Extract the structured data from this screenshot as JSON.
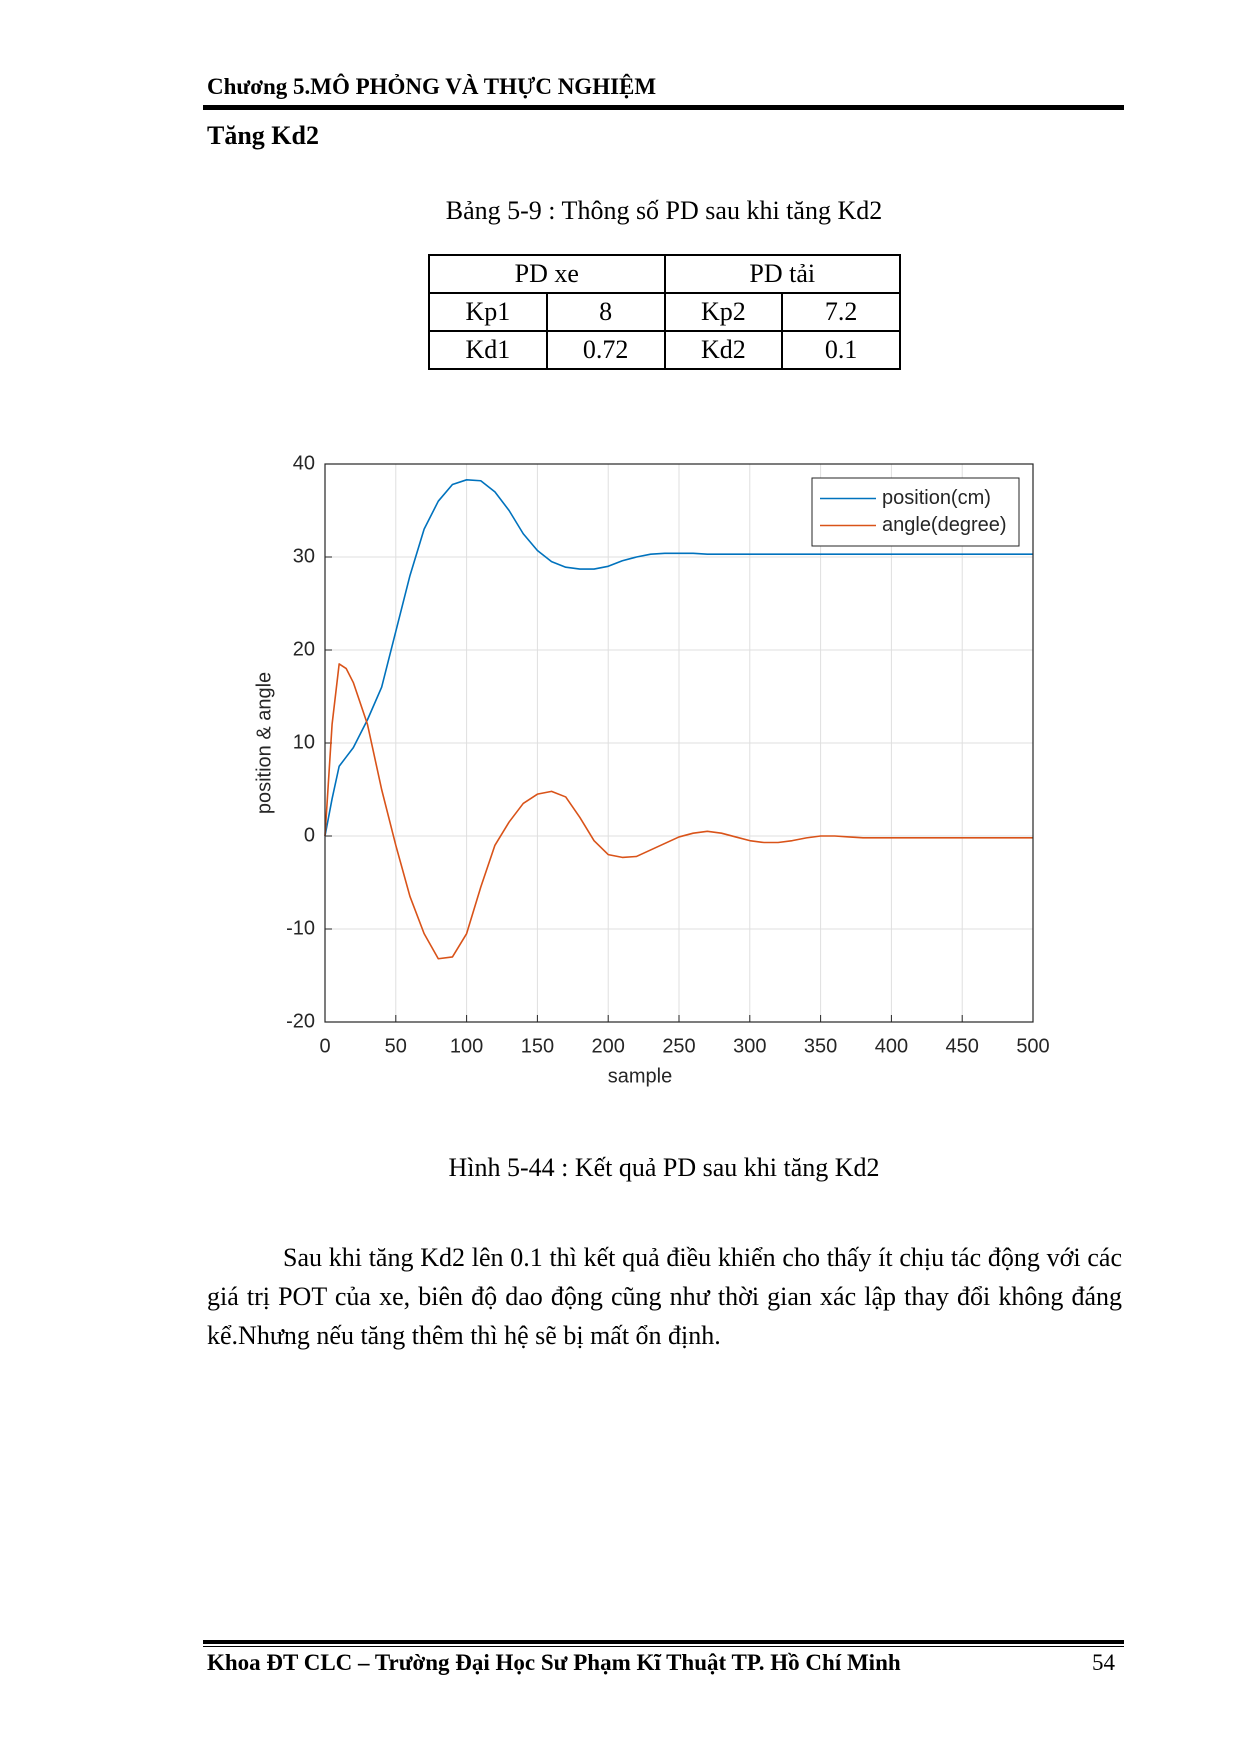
{
  "header": {
    "chapter": "Chương 5.MÔ PHỎNG VÀ THỰC NGHIỆM"
  },
  "section_title": "Tăng Kd2",
  "table_caption": "Bảng  5-9 : Thông số PD sau khi tăng Kd2",
  "table": {
    "headers": [
      "PD xe",
      "PD tải"
    ],
    "rows": [
      [
        "Kp1",
        8,
        "Kp2",
        7.2
      ],
      [
        "Kd1",
        0.72,
        "Kd2",
        0.1
      ]
    ]
  },
  "chart_data": {
    "type": "line",
    "x_label": "sample",
    "y_label": "position & angle",
    "x": [
      0,
      5,
      10,
      15,
      20,
      30,
      40,
      50,
      60,
      70,
      80,
      90,
      100,
      110,
      120,
      130,
      140,
      150,
      160,
      170,
      180,
      190,
      200,
      210,
      220,
      230,
      240,
      250,
      260,
      270,
      280,
      290,
      300,
      310,
      320,
      330,
      340,
      350,
      360,
      370,
      380,
      390,
      400,
      410,
      420,
      430,
      440,
      450,
      460,
      470,
      480,
      490,
      500
    ],
    "series": [
      {
        "name": "position(cm)",
        "color": "#0072bd",
        "values": [
          0,
          4,
          7.5,
          8.5,
          9.5,
          12.5,
          16,
          22,
          28,
          33,
          36,
          37.8,
          38.3,
          38.2,
          37,
          35,
          32.5,
          30.7,
          29.5,
          28.9,
          28.7,
          28.7,
          29,
          29.6,
          30,
          30.3,
          30.4,
          30.4,
          30.4,
          30.3,
          30.3,
          30.3,
          30.3,
          30.3,
          30.3,
          30.3,
          30.3,
          30.3,
          30.3,
          30.3,
          30.3,
          30.3,
          30.3,
          30.3,
          30.3,
          30.3,
          30.3,
          30.3,
          30.3,
          30.3,
          30.3,
          30.3,
          30.3
        ]
      },
      {
        "name": "angle(degree)",
        "color": "#d95319",
        "values": [
          0,
          12,
          18.5,
          18,
          16.5,
          12,
          5,
          -1,
          -6.5,
          -10.5,
          -13.2,
          -13,
          -10.5,
          -5.5,
          -1,
          1.5,
          3.5,
          4.5,
          4.8,
          4.2,
          2,
          -0.5,
          -2,
          -2.3,
          -2.2,
          -1.5,
          -0.8,
          -0.1,
          0.3,
          0.5,
          0.3,
          -0.1,
          -0.5,
          -0.7,
          -0.7,
          -0.5,
          -0.2,
          0,
          0,
          -0.1,
          -0.2,
          -0.2,
          -0.2,
          -0.2,
          -0.2,
          -0.2,
          -0.2,
          -0.2,
          -0.2,
          -0.2,
          -0.2,
          -0.2,
          -0.2
        ]
      }
    ],
    "xlim": [
      0,
      500
    ],
    "xticks": [
      0,
      50,
      100,
      150,
      200,
      250,
      300,
      350,
      400,
      450,
      500
    ],
    "ylim": [
      -20,
      40
    ],
    "yticks": [
      -20,
      -10,
      0,
      10,
      20,
      30,
      40
    ],
    "grid": true,
    "legend": "northeast"
  },
  "figure_caption": "Hình 5-44 : Kết quả PD sau khi tăng Kd2",
  "paragraph": "Sau khi tăng Kd2 lên 0.1 thì kết quả điều khiển cho thấy ít chịu tác động với các giá trị POT của xe, biên độ dao động cũng như thời gian xác lập thay đổi không đáng kể.Nhưng nếu tăng thêm thì hệ sẽ bị mất ổn định.",
  "footer": {
    "text": "Khoa ĐT CLC – Trường Đại Học Sư Phạm Kĩ Thuật TP. Hồ Chí Minh",
    "page": 54
  }
}
